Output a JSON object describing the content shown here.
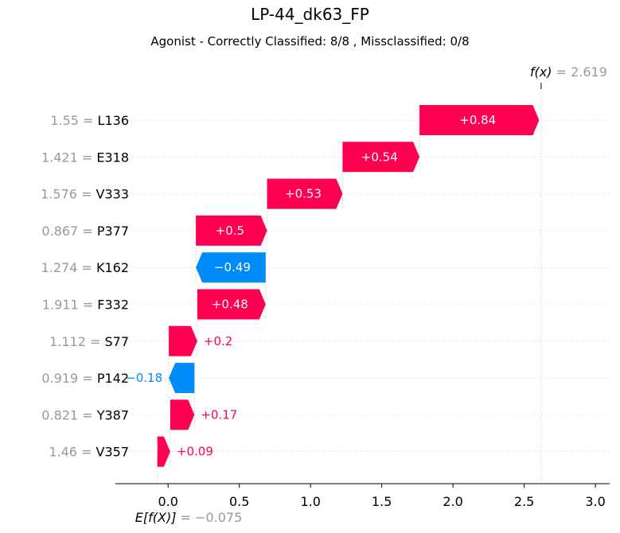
{
  "chart_data": {
    "type": "waterfall",
    "title": "LP-44_dk63_FP",
    "subtitle": "Agonist - Correctly Classified: 8/8 , Missclassified: 0/8",
    "base_label": "E[f(X)]",
    "base_value": -0.075,
    "base_value_label": "= −0.075",
    "output_label": "f(x)",
    "output_value": 2.619,
    "output_value_label": "= 2.619",
    "xlim": [
      -0.37,
      3.1
    ],
    "xticks": [
      0.0,
      0.5,
      1.0,
      1.5,
      2.0,
      2.5,
      3.0
    ],
    "xtick_labels": [
      "0.0",
      "0.5",
      "1.0",
      "1.5",
      "2.0",
      "2.5",
      "3.0"
    ],
    "features": [
      {
        "value_label": "1.55",
        "name": "L136",
        "contribution": 0.84,
        "label": "+0.84"
      },
      {
        "value_label": "1.421",
        "name": "E318",
        "contribution": 0.54,
        "label": "+0.54"
      },
      {
        "value_label": "1.576",
        "name": "V333",
        "contribution": 0.53,
        "label": "+0.53"
      },
      {
        "value_label": "0.867",
        "name": "P377",
        "contribution": 0.5,
        "label": "+0.5"
      },
      {
        "value_label": "1.274",
        "name": "K162",
        "contribution": -0.49,
        "label": "−0.49"
      },
      {
        "value_label": "1.911",
        "name": "F332",
        "contribution": 0.48,
        "label": "+0.48"
      },
      {
        "value_label": "1.112",
        "name": "S77",
        "contribution": 0.2,
        "label": "+0.2"
      },
      {
        "value_label": "0.919",
        "name": "P142",
        "contribution": -0.18,
        "label": "−0.18"
      },
      {
        "value_label": "0.821",
        "name": "Y387",
        "contribution": 0.17,
        "label": "+0.17"
      },
      {
        "value_label": "1.46",
        "name": "V357",
        "contribution": 0.09,
        "label": "+0.09"
      }
    ],
    "colors": {
      "positive": "#ff0051",
      "negative": "#008bfb",
      "muted": "#999999",
      "grid": "#cccccc"
    }
  }
}
